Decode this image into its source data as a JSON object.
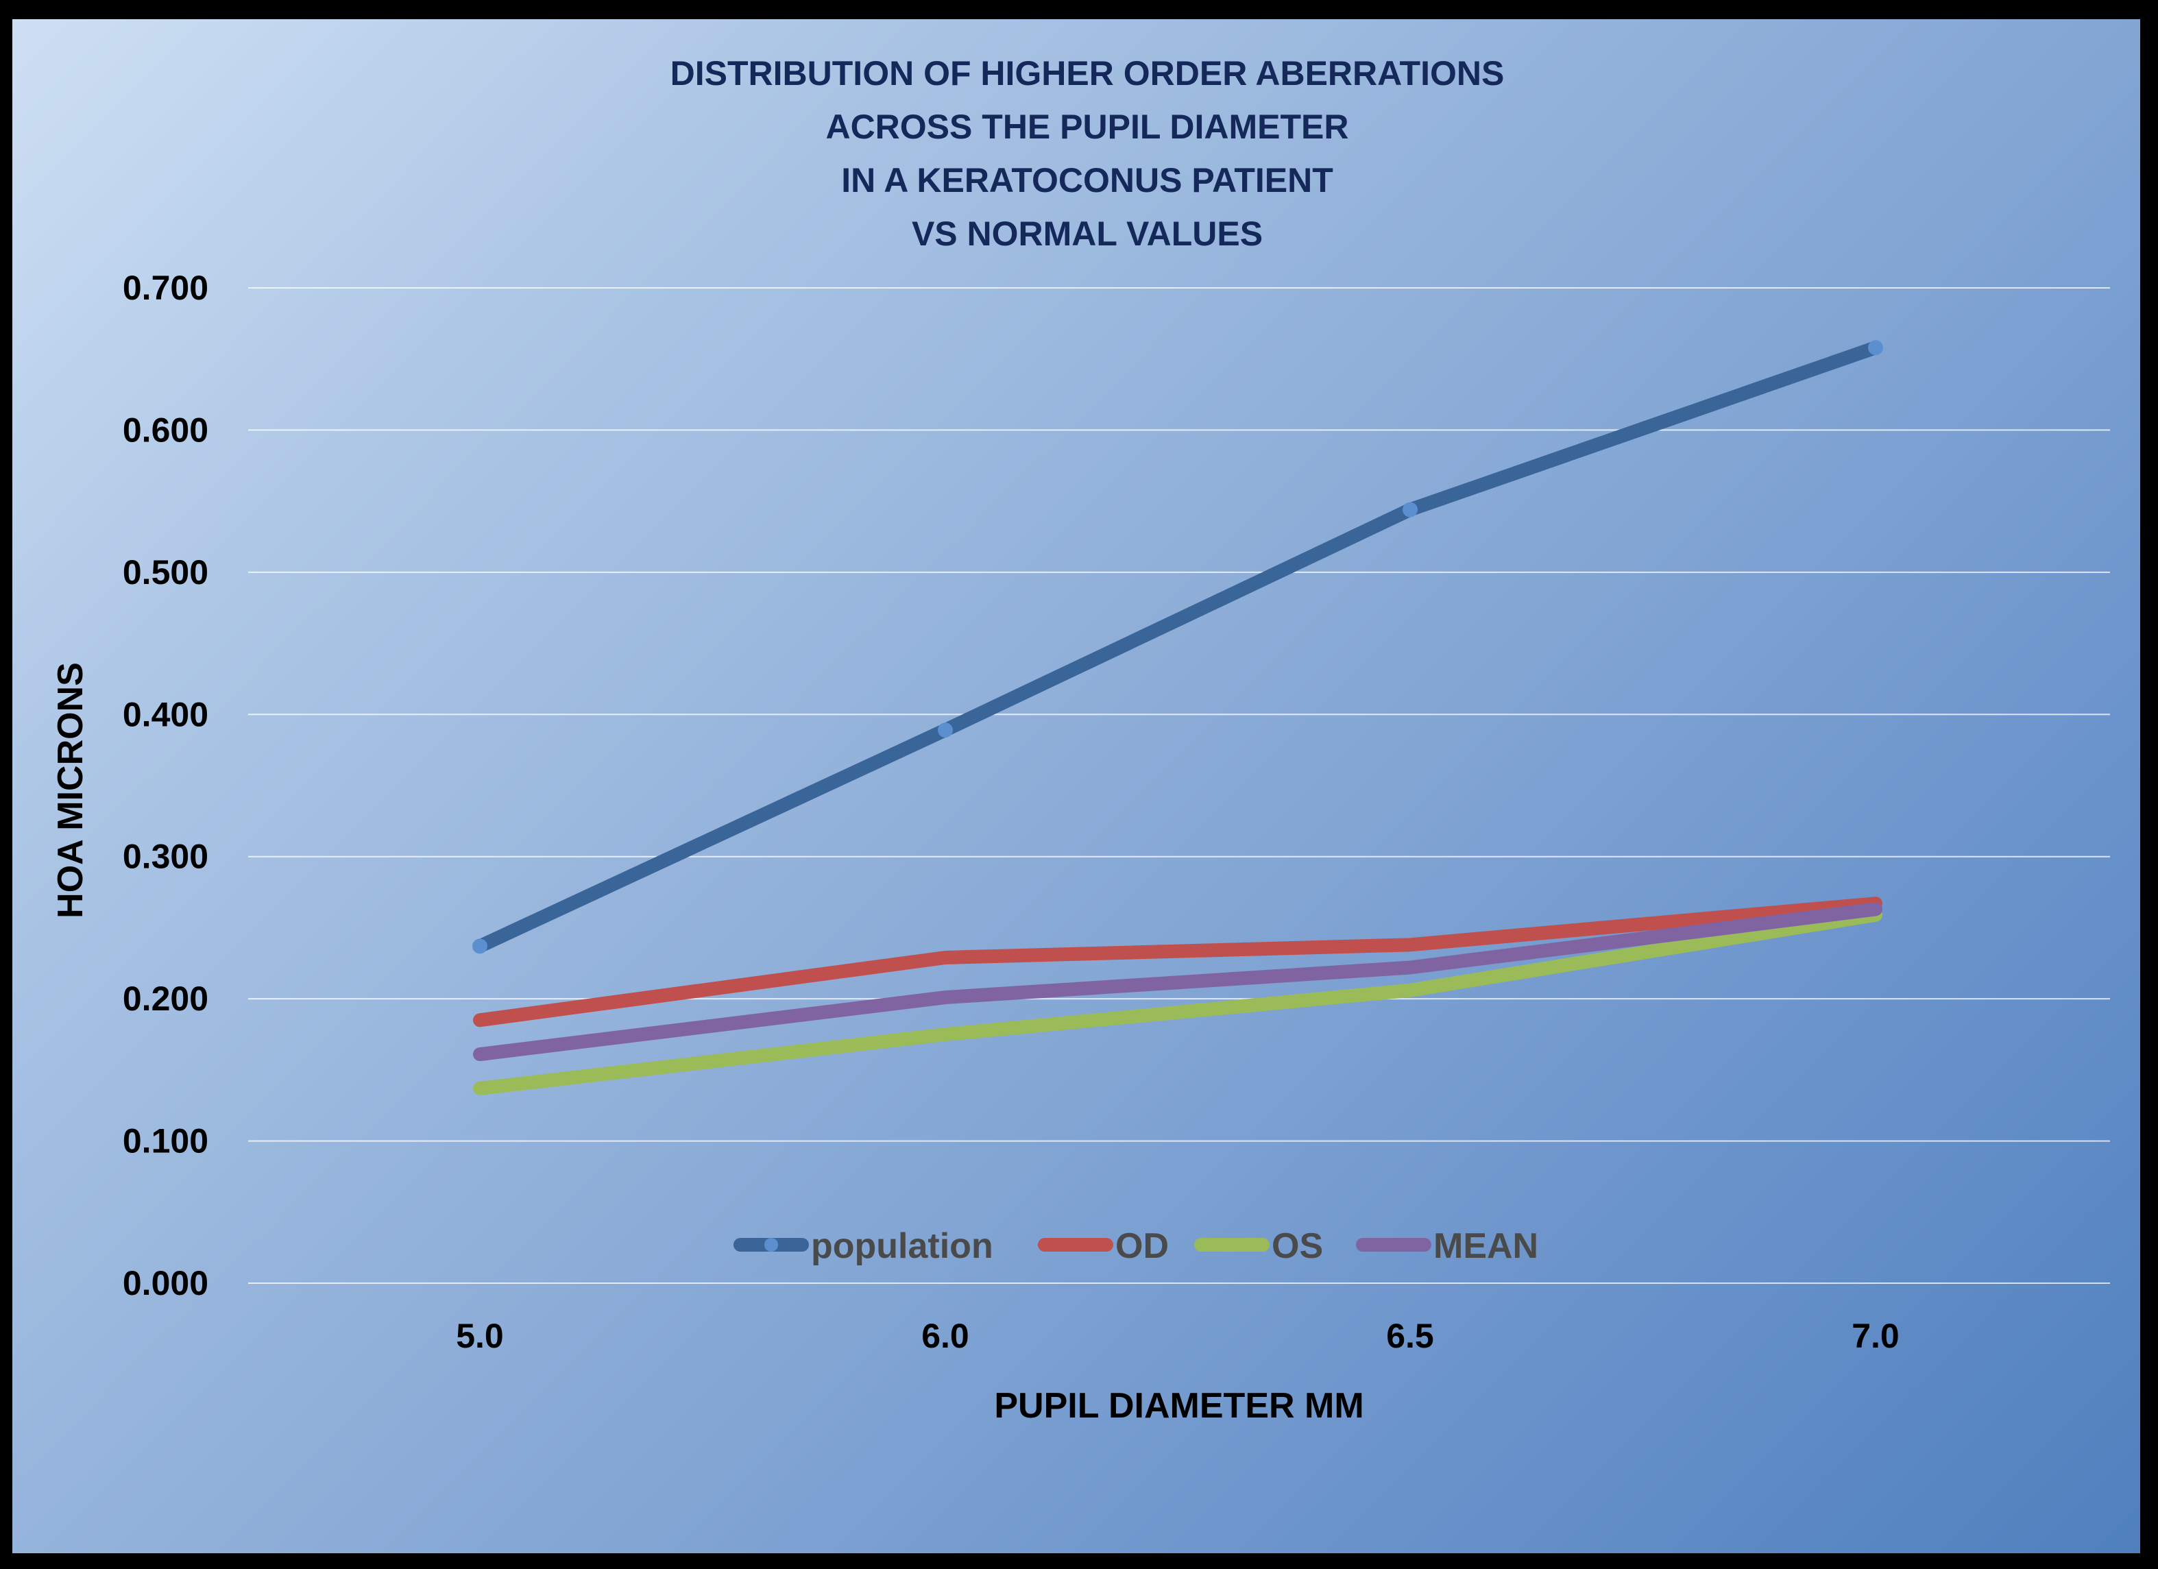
{
  "chart_data": {
    "type": "line",
    "title_lines": [
      "DISTRIBUTION OF HIGHER ORDER ABERRATIONS",
      "ACROSS THE PUPIL DIAMETER",
      "IN A KERATOCONUS PATIENT",
      "VS NORMAL VALUES"
    ],
    "xlabel": "PUPIL DIAMETER MM",
    "ylabel": "HOA MICRONS",
    "categories": [
      "5.0",
      "6.0",
      "6.5",
      "7.0"
    ],
    "ylim": [
      0,
      0.7
    ],
    "yticks": [
      "0.000",
      "0.100",
      "0.200",
      "0.300",
      "0.400",
      "0.500",
      "0.600",
      "0.700"
    ],
    "grid": true,
    "legend_position": "bottom-inside",
    "series": [
      {
        "name": "population",
        "values": [
          0.237,
          0.389,
          0.544,
          0.658
        ],
        "color": "#3a6599",
        "marker": true
      },
      {
        "name": "OD",
        "values": [
          0.185,
          0.229,
          0.238,
          0.267
        ],
        "color": "#c0504d",
        "marker": false
      },
      {
        "name": "OS",
        "values": [
          0.137,
          0.175,
          0.206,
          0.259
        ],
        "color": "#9bbb59",
        "marker": false
      },
      {
        "name": "MEAN",
        "values": [
          0.161,
          0.201,
          0.222,
          0.263
        ],
        "color": "#8064a2",
        "marker": false
      }
    ]
  }
}
